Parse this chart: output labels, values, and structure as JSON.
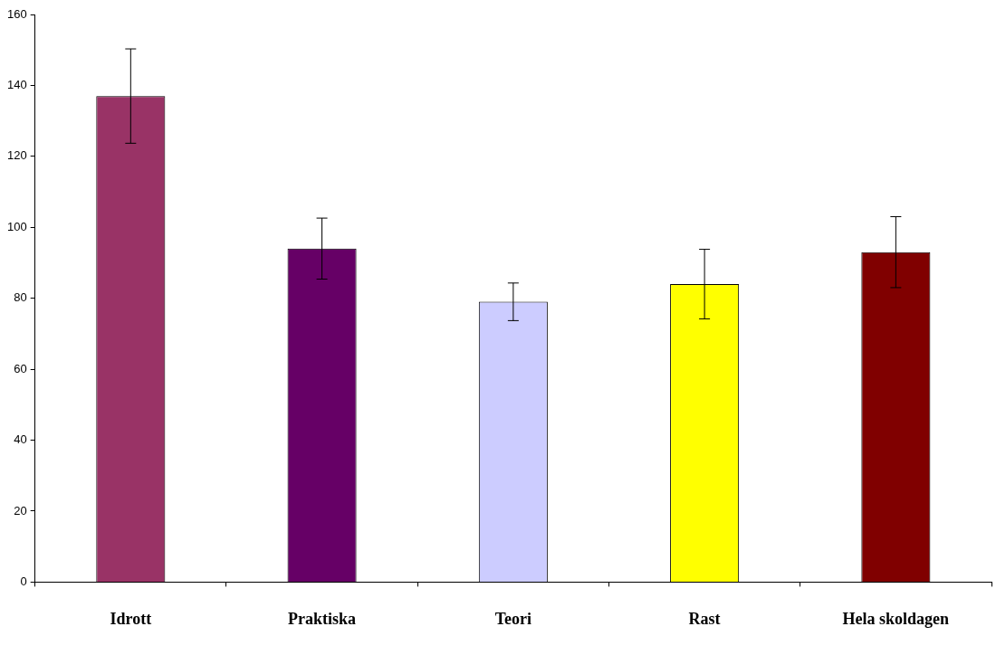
{
  "chart_data": {
    "type": "bar",
    "categories": [
      "Idrott",
      "Praktiska",
      "Teori",
      "Rast",
      "Hela skoldagen"
    ],
    "values": [
      137,
      94,
      79,
      84,
      93
    ],
    "errors": [
      13.3,
      8.6,
      5.3,
      9.8,
      10
    ],
    "colors": [
      "#993366",
      "#660066",
      "#ccccff",
      "#ffff00",
      "#800000"
    ],
    "ylim": [
      0,
      160
    ],
    "yticks": [
      0,
      20,
      40,
      60,
      80,
      100,
      120,
      140,
      160
    ],
    "grid": false
  }
}
